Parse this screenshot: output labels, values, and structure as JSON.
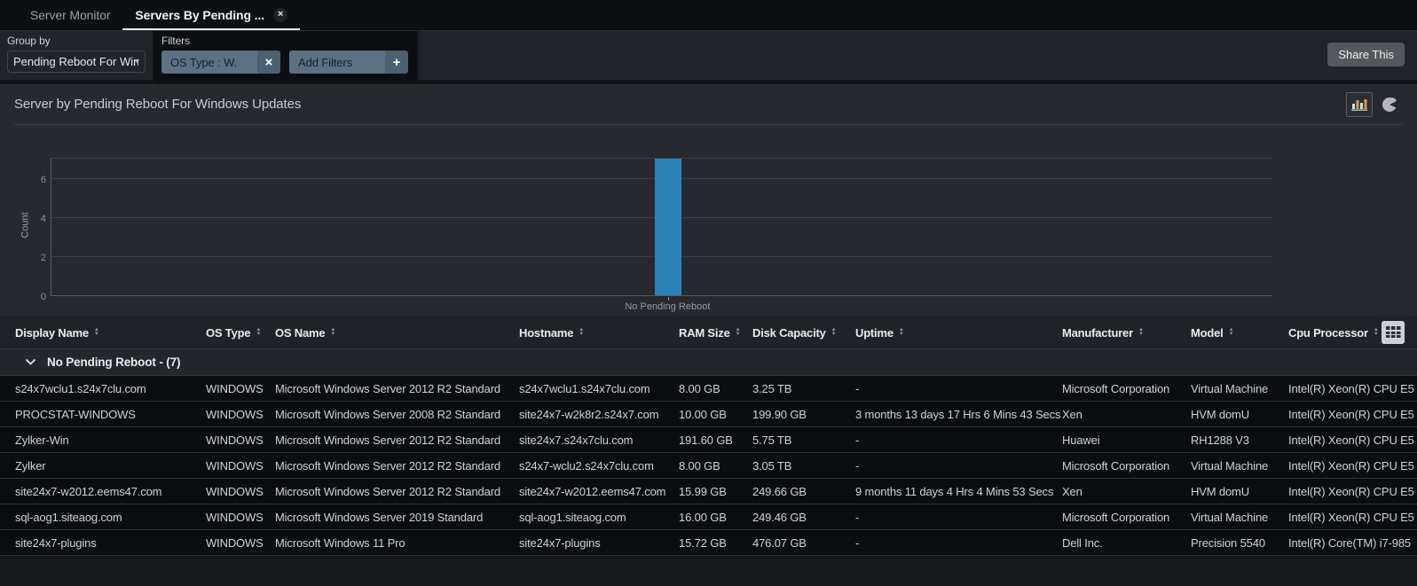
{
  "tabs": {
    "items": [
      {
        "label": "Server Monitor",
        "active": false
      },
      {
        "label": "Servers By Pending ...",
        "active": true,
        "closable": true
      }
    ]
  },
  "icons": {
    "close": "×",
    "plus": "+",
    "caret": "▾",
    "sort_asc": "▲",
    "sort_desc": "▼"
  },
  "toolbar": {
    "group_by_label": "Group by",
    "group_by_value": "Pending Reboot For Win",
    "filters_label": "Filters",
    "filter_chip": "OS Type :  W.",
    "add_filters": "Add Filters",
    "share_button": "Share This"
  },
  "chart_data": {
    "type": "bar",
    "title": "Server by Pending Reboot For Windows Updates",
    "categories": [
      "No Pending Reboot"
    ],
    "values": [
      7
    ],
    "xlabel": "",
    "ylabel": "Count",
    "yticks": [
      0,
      2,
      4,
      6
    ],
    "ylim": [
      0,
      7.1
    ],
    "bar_color": "#2e82b9",
    "grid": true,
    "legend": false
  },
  "table": {
    "columns": [
      "Display Name",
      "OS Type",
      "OS Name",
      "Hostname",
      "RAM Size",
      "Disk Capacity",
      "Uptime",
      "Manufacturer",
      "Model",
      "Cpu Processor"
    ],
    "group": {
      "label": "No Pending Reboot",
      "suffix": "- (7)"
    },
    "rows": [
      [
        "s24x7wclu1.s24x7clu.com",
        "WINDOWS",
        "Microsoft Windows Server 2012 R2 Standard",
        "s24x7wclu1.s24x7clu.com",
        "8.00 GB",
        "3.25 TB",
        "-",
        "Microsoft Corporation",
        "Virtual Machine",
        "Intel(R) Xeon(R) CPU E5"
      ],
      [
        "PROCSTAT-WINDOWS",
        "WINDOWS",
        "Microsoft Windows Server 2008 R2 Standard",
        "site24x7-w2k8r2.s24x7.com",
        "10.00 GB",
        "199.90 GB",
        "3 months 13 days 17 Hrs 6 Mins 43 Secs",
        "Xen",
        "HVM domU",
        "Intel(R) Xeon(R) CPU E5"
      ],
      [
        "Zylker-Win",
        "WINDOWS",
        "Microsoft Windows Server 2012 R2 Standard",
        "site24x7.s24x7clu.com",
        "191.60 GB",
        "5.75 TB",
        "-",
        "Huawei",
        "RH1288 V3",
        "Intel(R) Xeon(R) CPU E5"
      ],
      [
        "Zylker",
        "WINDOWS",
        "Microsoft Windows Server 2012 R2 Standard",
        "s24x7-wclu2.s24x7clu.com",
        "8.00 GB",
        "3.05 TB",
        "-",
        "Microsoft Corporation",
        "Virtual Machine",
        "Intel(R) Xeon(R) CPU E5"
      ],
      [
        "site24x7-w2012.eems47.com",
        "WINDOWS",
        "Microsoft Windows Server 2012 R2 Standard",
        "site24x7-w2012.eems47.com",
        "15.99 GB",
        "249.66 GB",
        "9 months 11 days 4 Hrs 4 Mins 53 Secs",
        "Xen",
        "HVM domU",
        "Intel(R) Xeon(R) CPU E5"
      ],
      [
        "sql-aog1.siteaog.com",
        "WINDOWS",
        "Microsoft Windows Server 2019 Standard",
        "sql-aog1.siteaog.com",
        "16.00 GB",
        "249.46 GB",
        "-",
        "Microsoft Corporation",
        "Virtual Machine",
        "Intel(R) Xeon(R) CPU E5"
      ],
      [
        "site24x7-plugins",
        "WINDOWS",
        "Microsoft Windows 11 Pro",
        "site24x7-plugins",
        "15.72 GB",
        "476.07 GB",
        "-",
        "Dell Inc.",
        "Precision 5540",
        "Intel(R) Core(TM) i7-985"
      ]
    ]
  },
  "colors": {
    "accent_bar": "#2e82b9",
    "chip_bg": "#5d7183",
    "tab_underline": "#eceef0"
  }
}
